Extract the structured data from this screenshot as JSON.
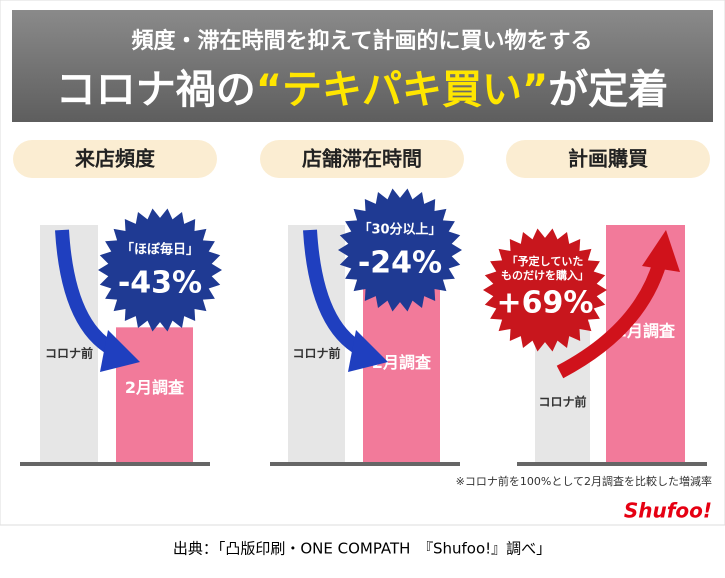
{
  "header": {
    "subtitle": "頻度・滞在時間を抑えて計画的に買い物をする",
    "title_parts": [
      "コロナ禍の",
      "“テキパキ買い”",
      "が定着"
    ]
  },
  "chart_data": [
    {
      "type": "bar",
      "title": "来店頻度",
      "categories": [
        "コロナ前",
        "2月調査"
      ],
      "values": [
        100,
        57
      ],
      "colors": [
        "#e6e6e6",
        "#f27a9a"
      ],
      "ylim": [
        0,
        100
      ],
      "badge": {
        "label": [
          "「ほぼ毎日」"
        ],
        "value_label": "-43%",
        "color": "#1f3a93"
      }
    },
    {
      "type": "bar",
      "title": "店舗滞在時間",
      "categories": [
        "コロナ前",
        "2月調査"
      ],
      "values": [
        100,
        76
      ],
      "colors": [
        "#e6e6e6",
        "#f27a9a"
      ],
      "ylim": [
        0,
        100
      ],
      "badge": {
        "label": [
          "「30分以上」"
        ],
        "value_label": "-24%",
        "color": "#1f3a93"
      }
    },
    {
      "type": "bar",
      "title": "計画購買",
      "categories": [
        "コロナ前",
        "2月調査"
      ],
      "values": [
        100,
        169
      ],
      "colors": [
        "#e6e6e6",
        "#f27a9a"
      ],
      "ylim": [
        0,
        169
      ],
      "badge": {
        "label": [
          "「予定していた",
          "ものだけを購入」"
        ],
        "value_label": "+69%",
        "color": "#c8161d"
      }
    }
  ],
  "note": "※コロナ前を100%として2月調査を比較した増減率",
  "logo": "Shufoo!",
  "source": "出典：「凸版印刷・ONE COMPATH　『Shufoo!』調べ」"
}
